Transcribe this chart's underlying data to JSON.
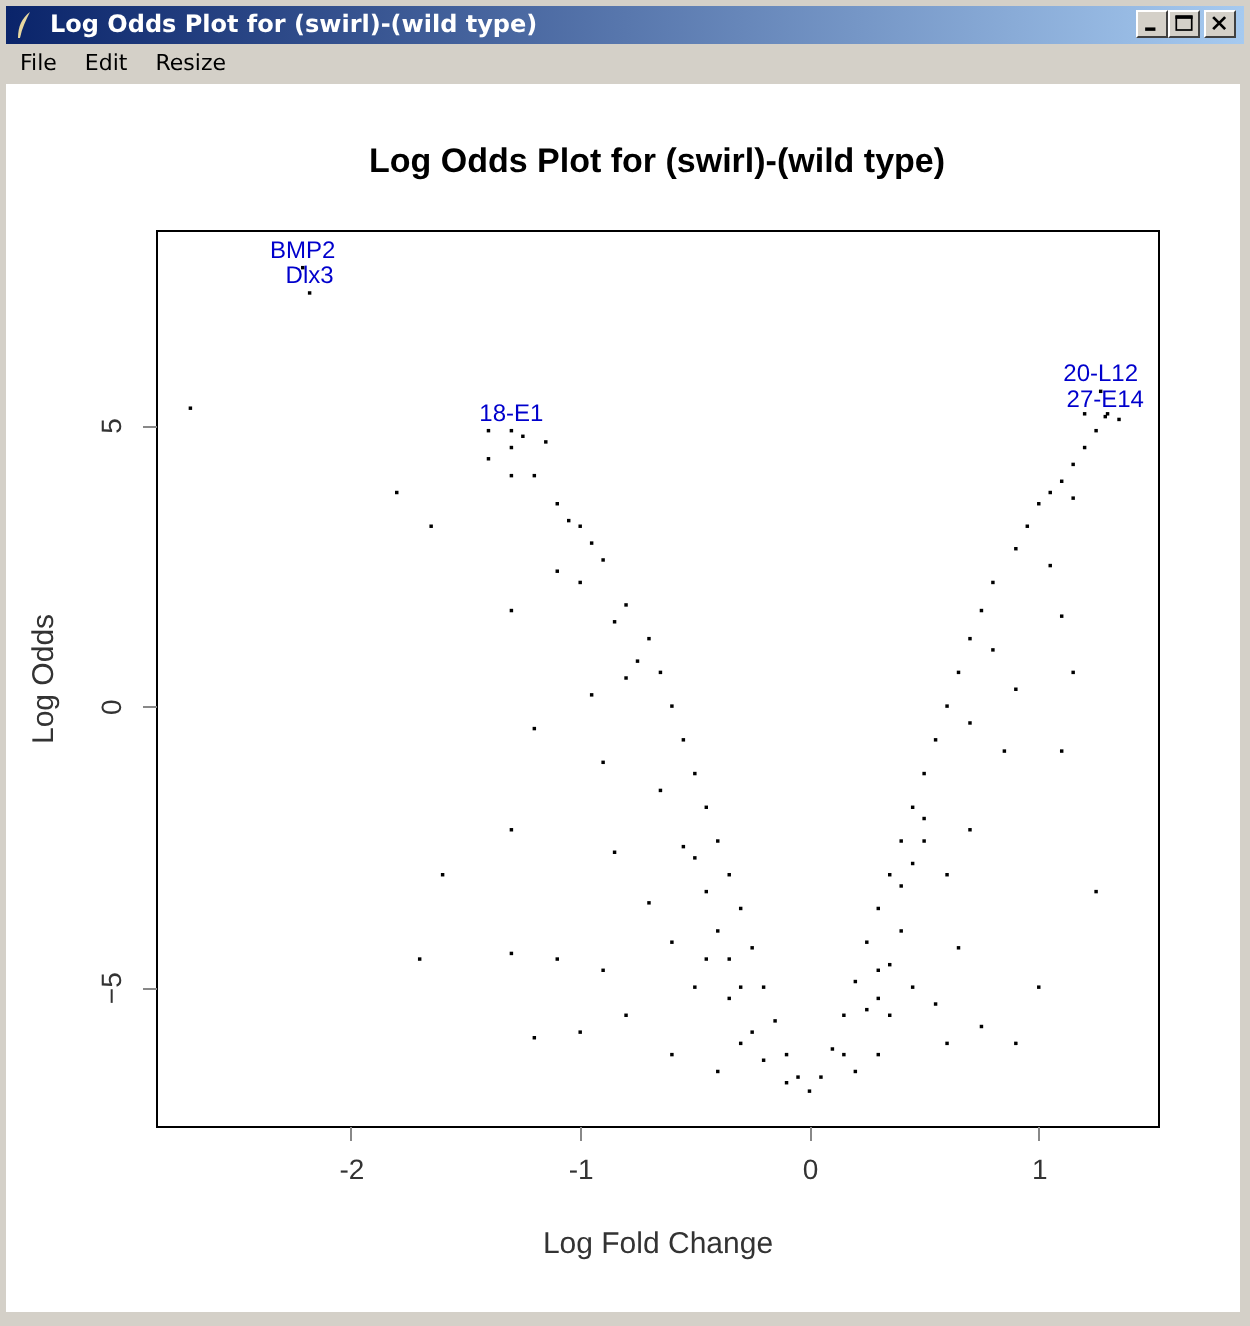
{
  "chart_data": {
    "type": "scatter",
    "title": "Log Odds Plot for (swirl)-(wild type)",
    "xlabel": "Log Fold Change",
    "ylabel": "Log Odds",
    "x": [
      0,
      -0.05,
      -0.1,
      -0.15,
      -0.2,
      -0.25,
      -0.3,
      -0.35,
      -0.4,
      -0.45,
      -0.5,
      -0.55,
      -0.6,
      -0.65,
      -0.7,
      -0.8,
      -0.9,
      -1.0,
      -1.1,
      -1.2,
      -1.3,
      -1.4,
      -2.7,
      -1.8,
      -1.65,
      -1.1,
      -1.0,
      -1.3,
      -0.75,
      -1.2,
      -1.3,
      -1.6,
      -1.7,
      -1.3,
      -1.1,
      -0.9,
      -0.8,
      -1.0,
      -1.2,
      -0.6,
      -0.4,
      -0.3,
      -0.5,
      -0.6,
      -0.7,
      -0.55,
      -0.65,
      -0.9,
      -0.85,
      -0.45,
      -0.35,
      -0.25,
      -0.2,
      -0.1,
      -1.15,
      -1.25,
      -1.3,
      -1.4,
      -0.95,
      -1.05,
      -0.85,
      -0.8,
      -0.95,
      0.05,
      0.1,
      0.15,
      0.2,
      0.25,
      0.3,
      0.35,
      0.4,
      0.45,
      0.5,
      0.55,
      0.6,
      0.65,
      0.7,
      0.75,
      0.8,
      0.9,
      0.95,
      1.0,
      1.05,
      1.1,
      1.15,
      1.2,
      1.25,
      0.5,
      0.6,
      0.7,
      0.65,
      0.55,
      0.6,
      0.75,
      0.9,
      1.0,
      1.25,
      1.1,
      1.15,
      1.1,
      1.05,
      1.15,
      0.85,
      0.9,
      0.8,
      0.7,
      0.4,
      0.45,
      0.35,
      0.3,
      0.2,
      0.25,
      0.15,
      0.3,
      1.35,
      1.3,
      1.2,
      -0.3,
      -0.35,
      -0.4,
      -0.45,
      -0.5,
      0.3,
      0.35,
      0.4,
      0.45,
      0.5,
      -2.21,
      -2.18,
      -1.3,
      1.27,
      1.29
    ],
    "values": [
      -6.85,
      -6.6,
      -6.2,
      -5.6,
      -5,
      -4.3,
      -3.6,
      -3,
      -2.4,
      -1.8,
      -1.2,
      -0.6,
      0,
      0.6,
      1.2,
      1.8,
      2.6,
      3.2,
      3.6,
      4.1,
      4.6,
      4.9,
      5.3,
      3.8,
      3.2,
      2.4,
      2.2,
      1.7,
      0.8,
      -0.4,
      -2.2,
      -3,
      -4.5,
      -4.4,
      -4.5,
      -4.7,
      -5.5,
      -5.8,
      -5.9,
      -6.2,
      -6.5,
      -6,
      -5,
      -4.2,
      -3.5,
      -2.5,
      -1.5,
      -1,
      -2.6,
      -4.5,
      -5.2,
      -5.8,
      -6.3,
      -6.7,
      4.7,
      4.8,
      4.1,
      4.4,
      2.9,
      3.3,
      1.5,
      0.5,
      0.2,
      -6.6,
      -6.1,
      -5.5,
      -4.9,
      -4.2,
      -3.6,
      -3,
      -2.4,
      -1.8,
      -1.2,
      -0.6,
      0,
      0.6,
      1.2,
      1.7,
      2.2,
      2.8,
      3.2,
      3.6,
      3.8,
      4,
      4.3,
      4.6,
      4.9,
      -2.4,
      -3,
      -2.2,
      -4.3,
      -5.3,
      -6,
      -5.7,
      -6,
      -5,
      -3.3,
      -0.8,
      0.6,
      1.6,
      2.5,
      3.7,
      -0.8,
      0.3,
      1,
      -0.3,
      -4,
      -5,
      -5.5,
      -6.2,
      -6.5,
      -5.4,
      -6.2,
      -4.7,
      5.1,
      5.2,
      5.2,
      -5,
      -4.5,
      -4,
      -3.3,
      -2.7,
      -5.2,
      -4.6,
      -3.2,
      -2.8,
      -2,
      7.8,
      7.35,
      4.9,
      5.6,
      5.15
    ],
    "color": "#000000",
    "marker": "square",
    "xlim": [
      -2.85,
      1.52
    ],
    "ylim": [
      -7.47,
      8.47
    ],
    "xticks": [
      {
        "value": -2,
        "label": "-2"
      },
      {
        "value": -1,
        "label": "-1"
      },
      {
        "value": 0,
        "label": "0"
      },
      {
        "value": 1,
        "label": "1"
      }
    ],
    "yticks": [
      -5,
      0,
      5
    ],
    "grid": false,
    "annotations": [
      "File",
      "Edit",
      "Resize",
      {
        "text": "BMP2",
        "x": -2.21,
        "y": 7.8
      },
      {
        "text": "Dlx3",
        "x": -2.18,
        "y": 7.35
      },
      {
        "text": "18-E1",
        "x": -1.3,
        "y": 4.9
      },
      {
        "text": "20-L12",
        "x": 1.27,
        "y": 5.6
      },
      {
        "text": "27-E14",
        "x": 1.29,
        "y": 5.15
      }
    ]
  }
}
